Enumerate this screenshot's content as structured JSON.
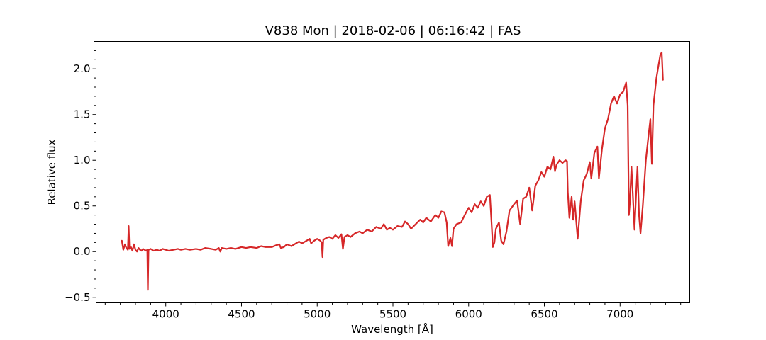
{
  "chart_data": {
    "type": "line",
    "title": "V838 Mon | 2018-02-06 | 06:16:42 | FAS",
    "xlabel": "Wavelength [Å]",
    "ylabel": "Relative flux",
    "xlim": [
      3540,
      7460
    ],
    "ylim": [
      -0.56,
      2.3
    ],
    "x_ticks": [
      4000,
      4500,
      5000,
      5500,
      6000,
      6500,
      7000
    ],
    "x_tick_labels": [
      "4000",
      "4500",
      "5000",
      "5500",
      "6000",
      "6500",
      "7000"
    ],
    "y_ticks": [
      -0.5,
      0.0,
      0.5,
      1.0,
      1.5,
      2.0
    ],
    "y_tick_labels": [
      "−0.5",
      "0.0",
      "0.5",
      "1.0",
      "1.5",
      "2.0"
    ],
    "x_minor_step": 100,
    "y_minor_step": 0.1,
    "grid": false,
    "color": "#d62728",
    "series": [
      {
        "points": [
          [
            3710,
            0.12
          ],
          [
            3720,
            0.02
          ],
          [
            3730,
            0.08
          ],
          [
            3740,
            0.04
          ],
          [
            3750,
            0.02
          ],
          [
            3755,
            0.28
          ],
          [
            3760,
            0.03
          ],
          [
            3770,
            0.05
          ],
          [
            3780,
            0.01
          ],
          [
            3790,
            0.08
          ],
          [
            3800,
            0.02
          ],
          [
            3810,
            0.0
          ],
          [
            3820,
            0.04
          ],
          [
            3830,
            0.02
          ],
          [
            3840,
            0.01
          ],
          [
            3850,
            0.03
          ],
          [
            3860,
            0.02
          ],
          [
            3870,
            0.01
          ],
          [
            3878,
            0.02
          ],
          [
            3882,
            -0.42
          ],
          [
            3886,
            0.02
          ],
          [
            3900,
            0.03
          ],
          [
            3920,
            0.01
          ],
          [
            3940,
            0.02
          ],
          [
            3960,
            0.01
          ],
          [
            3980,
            0.03
          ],
          [
            4000,
            0.02
          ],
          [
            4020,
            0.01
          ],
          [
            4050,
            0.02
          ],
          [
            4080,
            0.03
          ],
          [
            4100,
            0.02
          ],
          [
            4130,
            0.03
          ],
          [
            4160,
            0.02
          ],
          [
            4200,
            0.03
          ],
          [
            4230,
            0.02
          ],
          [
            4260,
            0.04
          ],
          [
            4300,
            0.03
          ],
          [
            4330,
            0.02
          ],
          [
            4350,
            0.04
          ],
          [
            4360,
            0.0
          ],
          [
            4370,
            0.04
          ],
          [
            4400,
            0.03
          ],
          [
            4430,
            0.04
          ],
          [
            4460,
            0.03
          ],
          [
            4500,
            0.05
          ],
          [
            4530,
            0.04
          ],
          [
            4560,
            0.05
          ],
          [
            4600,
            0.04
          ],
          [
            4630,
            0.06
          ],
          [
            4660,
            0.05
          ],
          [
            4700,
            0.05
          ],
          [
            4730,
            0.07
          ],
          [
            4750,
            0.08
          ],
          [
            4760,
            0.04
          ],
          [
            4780,
            0.05
          ],
          [
            4800,
            0.08
          ],
          [
            4830,
            0.06
          ],
          [
            4860,
            0.09
          ],
          [
            4880,
            0.11
          ],
          [
            4900,
            0.09
          ],
          [
            4930,
            0.12
          ],
          [
            4950,
            0.14
          ],
          [
            4960,
            0.09
          ],
          [
            4980,
            0.12
          ],
          [
            5000,
            0.14
          ],
          [
            5020,
            0.12
          ],
          [
            5030,
            0.1
          ],
          [
            5035,
            -0.06
          ],
          [
            5040,
            0.13
          ],
          [
            5060,
            0.15
          ],
          [
            5080,
            0.16
          ],
          [
            5100,
            0.14
          ],
          [
            5120,
            0.18
          ],
          [
            5140,
            0.15
          ],
          [
            5160,
            0.19
          ],
          [
            5170,
            0.03
          ],
          [
            5180,
            0.16
          ],
          [
            5200,
            0.18
          ],
          [
            5220,
            0.16
          ],
          [
            5250,
            0.2
          ],
          [
            5280,
            0.22
          ],
          [
            5300,
            0.2
          ],
          [
            5330,
            0.24
          ],
          [
            5360,
            0.22
          ],
          [
            5390,
            0.27
          ],
          [
            5420,
            0.25
          ],
          [
            5440,
            0.3
          ],
          [
            5460,
            0.24
          ],
          [
            5480,
            0.26
          ],
          [
            5500,
            0.24
          ],
          [
            5530,
            0.28
          ],
          [
            5560,
            0.27
          ],
          [
            5580,
            0.33
          ],
          [
            5600,
            0.3
          ],
          [
            5620,
            0.25
          ],
          [
            5650,
            0.3
          ],
          [
            5680,
            0.35
          ],
          [
            5700,
            0.32
          ],
          [
            5720,
            0.37
          ],
          [
            5750,
            0.33
          ],
          [
            5780,
            0.4
          ],
          [
            5800,
            0.37
          ],
          [
            5820,
            0.44
          ],
          [
            5840,
            0.43
          ],
          [
            5855,
            0.32
          ],
          [
            5865,
            0.06
          ],
          [
            5880,
            0.15
          ],
          [
            5890,
            0.06
          ],
          [
            5900,
            0.25
          ],
          [
            5920,
            0.3
          ],
          [
            5950,
            0.32
          ],
          [
            5980,
            0.42
          ],
          [
            6000,
            0.48
          ],
          [
            6020,
            0.43
          ],
          [
            6040,
            0.52
          ],
          [
            6060,
            0.48
          ],
          [
            6080,
            0.55
          ],
          [
            6100,
            0.5
          ],
          [
            6120,
            0.6
          ],
          [
            6140,
            0.62
          ],
          [
            6150,
            0.35
          ],
          [
            6160,
            0.05
          ],
          [
            6170,
            0.1
          ],
          [
            6180,
            0.25
          ],
          [
            6200,
            0.32
          ],
          [
            6215,
            0.12
          ],
          [
            6230,
            0.08
          ],
          [
            6250,
            0.22
          ],
          [
            6270,
            0.45
          ],
          [
            6300,
            0.52
          ],
          [
            6320,
            0.56
          ],
          [
            6340,
            0.3
          ],
          [
            6360,
            0.58
          ],
          [
            6380,
            0.6
          ],
          [
            6400,
            0.7
          ],
          [
            6420,
            0.45
          ],
          [
            6440,
            0.72
          ],
          [
            6460,
            0.78
          ],
          [
            6480,
            0.87
          ],
          [
            6500,
            0.82
          ],
          [
            6520,
            0.93
          ],
          [
            6540,
            0.9
          ],
          [
            6560,
            1.04
          ],
          [
            6570,
            0.88
          ],
          [
            6580,
            0.95
          ],
          [
            6600,
            1.0
          ],
          [
            6620,
            0.97
          ],
          [
            6640,
            1.0
          ],
          [
            6650,
            0.99
          ],
          [
            6655,
            0.65
          ],
          [
            6665,
            0.37
          ],
          [
            6680,
            0.6
          ],
          [
            6690,
            0.35
          ],
          [
            6700,
            0.55
          ],
          [
            6720,
            0.14
          ],
          [
            6740,
            0.55
          ],
          [
            6760,
            0.78
          ],
          [
            6780,
            0.85
          ],
          [
            6800,
            0.98
          ],
          [
            6810,
            0.8
          ],
          [
            6830,
            1.08
          ],
          [
            6850,
            1.15
          ],
          [
            6860,
            0.8
          ],
          [
            6880,
            1.12
          ],
          [
            6900,
            1.35
          ],
          [
            6920,
            1.45
          ],
          [
            6940,
            1.62
          ],
          [
            6960,
            1.7
          ],
          [
            6980,
            1.62
          ],
          [
            7000,
            1.72
          ],
          [
            7020,
            1.75
          ],
          [
            7040,
            1.85
          ],
          [
            7050,
            1.6
          ],
          [
            7058,
            0.4
          ],
          [
            7065,
            0.55
          ],
          [
            7075,
            0.93
          ],
          [
            7085,
            0.6
          ],
          [
            7095,
            0.24
          ],
          [
            7105,
            0.6
          ],
          [
            7115,
            0.93
          ],
          [
            7125,
            0.4
          ],
          [
            7135,
            0.2
          ],
          [
            7150,
            0.5
          ],
          [
            7170,
            1.0
          ],
          [
            7190,
            1.3
          ],
          [
            7200,
            1.45
          ],
          [
            7210,
            0.96
          ],
          [
            7220,
            1.6
          ],
          [
            7240,
            1.9
          ],
          [
            7255,
            2.05
          ],
          [
            7265,
            2.15
          ],
          [
            7275,
            2.18
          ],
          [
            7283,
            1.88
          ]
        ]
      }
    ]
  }
}
